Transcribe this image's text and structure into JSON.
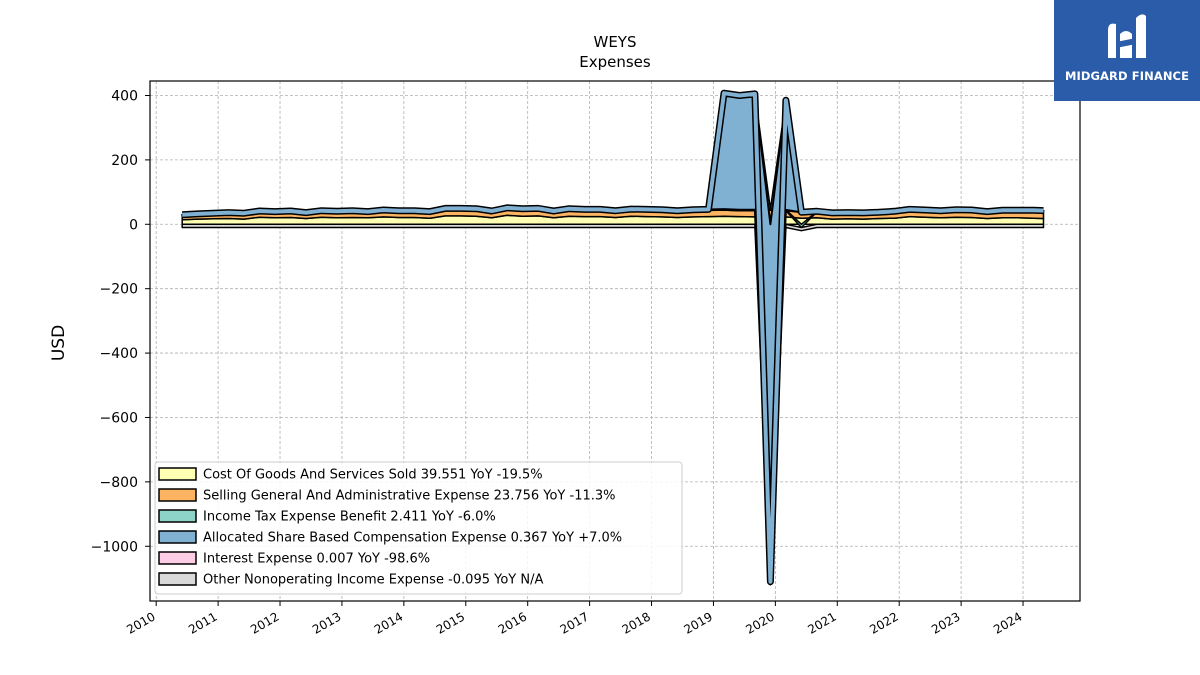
{
  "brand": {
    "name": "MIDGARD FINANCE",
    "color": "#2a5caa",
    "icon": "midgard-logo-icon"
  },
  "chart_data": {
    "type": "area",
    "title": "WEYS",
    "subtitle": "Expenses",
    "ylabel": "USD",
    "xlabel": "",
    "ylim": [
      -1170,
      445
    ],
    "xlim": [
      2009.9,
      2024.92
    ],
    "yticks": [
      400,
      200,
      0,
      -200,
      -400,
      -600,
      -800,
      -1000
    ],
    "ytick_labels": [
      "400",
      "200",
      "0",
      "−200",
      "−400",
      "−600",
      "−800",
      "−1000"
    ],
    "xticks": [
      2010,
      2011,
      2012,
      2013,
      2014,
      2015,
      2016,
      2017,
      2018,
      2019,
      2020,
      2021,
      2022,
      2023,
      2024
    ],
    "xtick_labels": [
      "2010",
      "2011",
      "2012",
      "2013",
      "2014",
      "2015",
      "2016",
      "2017",
      "2018",
      "2019",
      "2020",
      "2021",
      "2022",
      "2023",
      "2024"
    ],
    "grid": true,
    "legend_position": "lower-left",
    "x": [
      2010.42,
      2010.67,
      2010.92,
      2011.17,
      2011.42,
      2011.67,
      2011.92,
      2012.17,
      2012.42,
      2012.67,
      2012.92,
      2013.17,
      2013.42,
      2013.67,
      2013.92,
      2014.17,
      2014.42,
      2014.67,
      2014.92,
      2015.17,
      2015.42,
      2015.67,
      2015.92,
      2016.17,
      2016.42,
      2016.67,
      2016.92,
      2017.17,
      2017.42,
      2017.67,
      2017.92,
      2018.17,
      2018.42,
      2018.67,
      2018.92,
      2019.17,
      2019.42,
      2019.67,
      2019.92,
      2020.17,
      2020.42,
      2020.67,
      2020.92,
      2021.17,
      2021.42,
      2021.67,
      2021.92,
      2022.17,
      2022.42,
      2022.67,
      2022.92,
      2023.17,
      2023.42,
      2023.67,
      2023.92,
      2024.17,
      2024.33
    ],
    "series": [
      {
        "name": "Cost Of Goods And Services Sold",
        "legend_value": "39.551",
        "legend_yoy": "YoY -19.5%",
        "color": "#ffffb3",
        "values": [
          14,
          16,
          17,
          18,
          16,
          22,
          20,
          21,
          18,
          22,
          20,
          21,
          20,
          23,
          21,
          21,
          19,
          26,
          26,
          25,
          20,
          28,
          25,
          26,
          20,
          25,
          24,
          24,
          21,
          25,
          24,
          23,
          21,
          23,
          24,
          25,
          24,
          23,
          25,
          23,
          19,
          20,
          16,
          17,
          16,
          18,
          19,
          24,
          22,
          20,
          22,
          21,
          18,
          20,
          20,
          19,
          18
        ]
      },
      {
        "name": "Selling General And Administrative Expense",
        "legend_value": "23.756",
        "legend_yoy": "YoY -11.3%",
        "color": "#fdb462",
        "values": [
          13,
          14,
          15,
          15,
          16,
          16,
          17,
          17,
          16,
          17,
          17,
          18,
          17,
          18,
          18,
          18,
          17,
          19,
          19,
          19,
          18,
          19,
          19,
          19,
          18,
          19,
          19,
          19,
          18,
          19,
          19,
          19,
          18,
          19,
          19,
          19,
          18,
          19,
          19,
          19,
          18,
          18,
          17,
          17,
          17,
          17,
          18,
          19,
          19,
          19,
          20,
          20,
          19,
          20,
          20,
          21,
          21
        ]
      },
      {
        "name": "Income Tax Expense Benefit",
        "legend_value": "2.411",
        "legend_yoy": "YoY -6.0%",
        "color": "#8dd3c7",
        "values": [
          2,
          2,
          2,
          3,
          2,
          3,
          2,
          3,
          2,
          3,
          3,
          3,
          2,
          3,
          3,
          3,
          3,
          4,
          4,
          4,
          3,
          4,
          4,
          4,
          3,
          4,
          3,
          3,
          3,
          3,
          3,
          3,
          3,
          3,
          3,
          3,
          3,
          3,
          3,
          3,
          -10,
          2,
          2,
          2,
          2,
          2,
          3,
          3,
          3,
          3,
          3,
          3,
          2,
          3,
          3,
          3,
          3
        ]
      },
      {
        "name": "Allocated Share Based Compensation Expense",
        "legend_value": "0.367",
        "legend_yoy": "YoY +7.0%",
        "color": "#80b1d3",
        "values": [
          0.3,
          0.3,
          0.3,
          0.3,
          0.3,
          0.3,
          0.3,
          0.3,
          0.3,
          0.3,
          0.3,
          0.3,
          0.3,
          0.3,
          0.3,
          0.3,
          0.3,
          0.3,
          0.3,
          0.3,
          0.3,
          0.3,
          0.3,
          0.3,
          0.3,
          0.3,
          0.3,
          0.3,
          0.3,
          0.3,
          0.3,
          0.3,
          0.3,
          0.3,
          0.3,
          360,
          355,
          360,
          -1110,
          340,
          0.4,
          0.3,
          0.3,
          0.3,
          0.3,
          0.3,
          0.3,
          0.3,
          0.3,
          0.3,
          0.3,
          0.3,
          0.3,
          0.3,
          0.3,
          0.4,
          0.4
        ]
      },
      {
        "name": "Interest Expense",
        "legend_value": "0.007",
        "legend_yoy": "YoY -98.6%",
        "color": "#fccde5",
        "values": [
          0.1,
          0.1,
          0.1,
          0.1,
          0.1,
          0.1,
          0.1,
          0.1,
          0.1,
          0.1,
          0.1,
          0.1,
          0.1,
          0.1,
          0.1,
          0.1,
          0.1,
          0.1,
          0.1,
          0.1,
          0.1,
          0.1,
          0.1,
          0.1,
          0.1,
          0.1,
          0.1,
          0.1,
          0.1,
          0.1,
          0.1,
          0.1,
          0.1,
          0.1,
          0.1,
          0.1,
          0.1,
          0.1,
          0.1,
          0.1,
          0.1,
          0.1,
          0.1,
          0.1,
          0.1,
          0.1,
          0.1,
          0.1,
          0.1,
          0.1,
          0.1,
          0.1,
          0.1,
          0.1,
          0.1,
          0.0,
          0.0
        ]
      },
      {
        "name": "Other Nonoperating Income Expense",
        "legend_value": "-0.095",
        "legend_yoy": "YoY N/A",
        "color": "#d9d9d9",
        "values": [
          -10,
          -10,
          -10,
          -10,
          -10,
          -10,
          -10,
          -10,
          -10,
          -10,
          -10,
          -10,
          -10,
          -10,
          -10,
          -10,
          -10,
          -10,
          -10,
          -10,
          -10,
          -10,
          -10,
          -10,
          -10,
          -10,
          -10,
          -10,
          -10,
          -10,
          -10,
          -10,
          -10,
          -10,
          -10,
          -10,
          -10,
          -10,
          -10,
          -10,
          -10,
          -10,
          -10,
          -10,
          -10,
          -10,
          -10,
          -10,
          -10,
          -10,
          -10,
          -10,
          -10,
          -10,
          -10,
          -10,
          -10
        ]
      }
    ]
  }
}
